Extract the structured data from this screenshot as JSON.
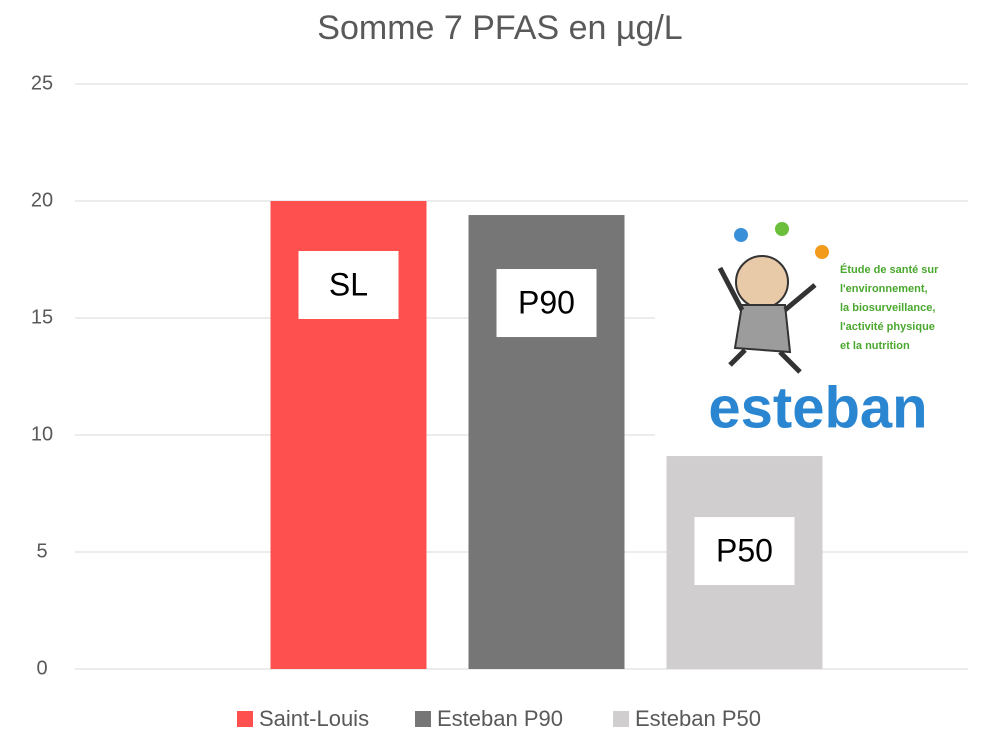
{
  "chart_data": {
    "type": "bar",
    "title": "Somme 7 PFAS en µg/L",
    "categories": [
      null
    ],
    "series": [
      {
        "name": "Saint-Louis",
        "color": "#ff5050",
        "values": [
          20
        ],
        "label": "SL"
      },
      {
        "name": "Esteban P90",
        "color": "#767676",
        "values": [
          19.4
        ],
        "label": "P90"
      },
      {
        "name": "Esteban P50",
        "color": "#d0cece",
        "values": [
          9.1
        ],
        "label": "P50"
      }
    ],
    "ylim": [
      0,
      25
    ],
    "yticks": [
      0,
      5,
      10,
      15,
      20,
      25
    ],
    "grid": true,
    "legend": "bottom"
  },
  "logo": {
    "name": "esteban",
    "lines": [
      "Étude de santé sur",
      "l'environnement,",
      "la biosurveillance,",
      "l'activité physique",
      "et la nutrition"
    ]
  }
}
